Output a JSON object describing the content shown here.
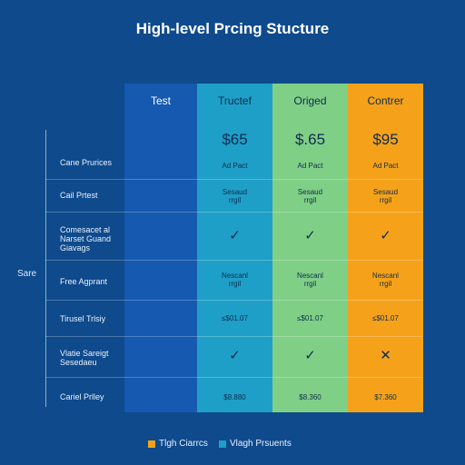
{
  "title": "High-level Prcing Stucture",
  "side_label": "Sare",
  "colors": {
    "background": "#0e4a8c",
    "col_test": "#1559b0",
    "col_tructed": "#1e9fc7",
    "col_origed": "#7fcf86",
    "col_contrer": "#f5a21a"
  },
  "columns": [
    {
      "name": "Test"
    },
    {
      "name": "Tructef"
    },
    {
      "name": "Origed"
    },
    {
      "name": "Contrer"
    }
  ],
  "rows": [
    {
      "label": "Cane Prurices",
      "cells": [
        "",
        "$65",
        "$.65",
        "$95"
      ],
      "sub": [
        "",
        "Ad Pact",
        "Ad Pact",
        "Ad Pact"
      ]
    },
    {
      "label": "Cail Prtest",
      "cells": [
        "",
        "Sesaud\nrrgil",
        "Sesaud\nrrgil",
        "Sesaud\nrrgil"
      ]
    },
    {
      "label": "Comesacet al\nNarset Guand\nGiavags",
      "cells": [
        "",
        "✓",
        "✓",
        "✓"
      ]
    },
    {
      "label": "Free Agprant",
      "cells": [
        "",
        "Nescanl\nrrgil",
        "Nescanl\nrrgil",
        "Nescanl\nrrgil"
      ]
    },
    {
      "label": "Tirusel Trlsiy",
      "cells": [
        "",
        "≤$01.07",
        "≤$01.07",
        "≤$01.07"
      ]
    },
    {
      "label": "Vlatie Sareigt\nSesedaeu",
      "cells": [
        "",
        "✓",
        "✓",
        "✕"
      ]
    },
    {
      "label": "Cariel Prlley",
      "cells": [
        "",
        "$8.880",
        "$8.360",
        "$7.360"
      ]
    }
  ],
  "legend": [
    {
      "label": "Tlgh Ciarrcs",
      "color": "#f5a21a"
    },
    {
      "label": "Vlagh Prsuents",
      "color": "#1e9fc7"
    }
  ]
}
